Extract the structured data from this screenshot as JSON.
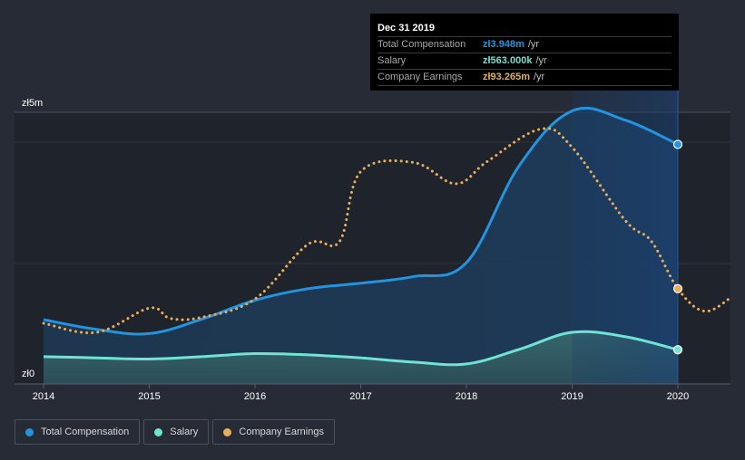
{
  "tooltip": {
    "date": "Dec 31 2019",
    "rows": [
      {
        "label": "Total Compensation",
        "value": "zł3.948m",
        "unit": "/yr",
        "color": "#2394df"
      },
      {
        "label": "Salary",
        "value": "zł563.000k",
        "unit": "/yr",
        "color": "#6fe3d4"
      },
      {
        "label": "Company Earnings",
        "value": "zł93.265m",
        "unit": "/yr",
        "color": "#e8ae5c"
      }
    ]
  },
  "legend": [
    {
      "label": "Total Compensation",
      "color": "#2394df"
    },
    {
      "label": "Salary",
      "color": "#6fe3d4"
    },
    {
      "label": "Company Earnings",
      "color": "#e8ae5c"
    }
  ],
  "chart_data": {
    "type": "line",
    "title": "",
    "xlabel": "",
    "ylabel": "",
    "y_tick_labels": [
      "zł0",
      "zł5m"
    ],
    "x_tick_labels": [
      "2014",
      "2015",
      "2016",
      "2017",
      "2018",
      "2019",
      "2020"
    ],
    "xlim": [
      2014,
      2020.5
    ],
    "ylim": [
      0,
      5
    ],
    "highlight_range": [
      2019,
      2020
    ],
    "series": [
      {
        "name": "Total Compensation",
        "color": "#2394df",
        "style": "solid-area",
        "x": [
          2014,
          2014.5,
          2015,
          2015.5,
          2016,
          2016.5,
          2017,
          2017.5,
          2018,
          2018.5,
          2019,
          2019.5,
          2020
        ],
        "y": [
          1.06,
          0.9,
          0.83,
          1.07,
          1.38,
          1.57,
          1.66,
          1.77,
          2.0,
          3.6,
          4.5,
          4.35,
          3.948
        ]
      },
      {
        "name": "Salary",
        "color": "#6fe3d4",
        "style": "solid-area",
        "x": [
          2014,
          2014.5,
          2015,
          2015.5,
          2016,
          2016.5,
          2017,
          2017.5,
          2018,
          2018.5,
          2019,
          2019.5,
          2020
        ],
        "y": [
          0.45,
          0.43,
          0.41,
          0.45,
          0.5,
          0.48,
          0.43,
          0.36,
          0.33,
          0.57,
          0.85,
          0.78,
          0.563
        ]
      },
      {
        "name": "Company Earnings",
        "color": "#e8ae5c",
        "style": "dotted",
        "x": [
          2014,
          2014.5,
          2015,
          2015.2,
          2015.5,
          2016,
          2016.5,
          2016.8,
          2017,
          2017.5,
          2017.9,
          2018.2,
          2018.7,
          2019,
          2019.5,
          2019.75,
          2020,
          2020.25,
          2020.5
        ],
        "y": [
          1.0,
          0.85,
          1.25,
          1.08,
          1.1,
          1.4,
          2.3,
          2.35,
          3.5,
          3.65,
          3.3,
          3.67,
          4.2,
          3.9,
          2.7,
          2.35,
          1.57,
          1.2,
          1.42
        ]
      }
    ]
  }
}
